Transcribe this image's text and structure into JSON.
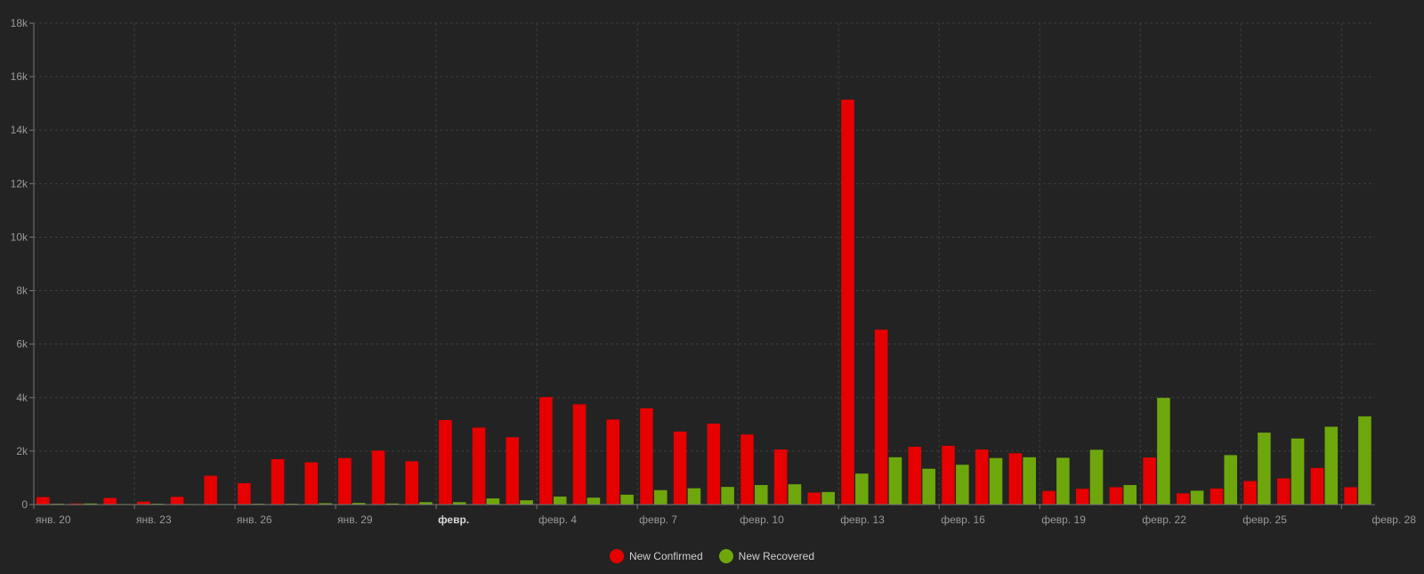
{
  "chart_data": {
    "type": "bar",
    "title": "",
    "xlabel": "",
    "ylabel": "",
    "ylim": [
      0,
      18000
    ],
    "y_ticks": [
      {
        "value": 0,
        "label": "0"
      },
      {
        "value": 2000,
        "label": "2k"
      },
      {
        "value": 4000,
        "label": "4k"
      },
      {
        "value": 6000,
        "label": "6k"
      },
      {
        "value": 8000,
        "label": "8k"
      },
      {
        "value": 10000,
        "label": "10k"
      },
      {
        "value": 12000,
        "label": "12k"
      },
      {
        "value": 14000,
        "label": "14k"
      },
      {
        "value": 16000,
        "label": "16k"
      },
      {
        "value": 18000,
        "label": "18k"
      }
    ],
    "x_ticks": [
      {
        "index": 0,
        "label": "янв. 20",
        "bold": false
      },
      {
        "index": 3,
        "label": "янв. 23",
        "bold": false
      },
      {
        "index": 6,
        "label": "янв. 26",
        "bold": false
      },
      {
        "index": 9,
        "label": "янв. 29",
        "bold": false
      },
      {
        "index": 12,
        "label": "февр.",
        "bold": true
      },
      {
        "index": 15,
        "label": "февр. 4",
        "bold": false
      },
      {
        "index": 18,
        "label": "февр. 7",
        "bold": false
      },
      {
        "index": 21,
        "label": "февр. 10",
        "bold": false
      },
      {
        "index": 24,
        "label": "февр. 13",
        "bold": false
      },
      {
        "index": 27,
        "label": "февр. 16",
        "bold": false
      },
      {
        "index": 30,
        "label": "февр. 19",
        "bold": false
      },
      {
        "index": 33,
        "label": "февр. 22",
        "bold": false
      },
      {
        "index": 36,
        "label": "февр. 25",
        "bold": false
      },
      {
        "index": 39,
        "label": "февр. 28",
        "bold": false
      }
    ],
    "categories": [
      "Jan 20",
      "Jan 21",
      "Jan 22",
      "Jan 23",
      "Jan 24",
      "Jan 25",
      "Jan 26",
      "Jan 27",
      "Jan 28",
      "Jan 29",
      "Jan 30",
      "Jan 31",
      "Feb 1",
      "Feb 2",
      "Feb 3",
      "Feb 4",
      "Feb 5",
      "Feb 6",
      "Feb 7",
      "Feb 8",
      "Feb 9",
      "Feb 10",
      "Feb 11",
      "Feb 12",
      "Feb 13",
      "Feb 14",
      "Feb 15",
      "Feb 16",
      "Feb 17",
      "Feb 18",
      "Feb 19",
      "Feb 20",
      "Feb 21",
      "Feb 22",
      "Feb 23",
      "Feb 24",
      "Feb 25",
      "Feb 26",
      "Feb 27",
      "Feb 28"
    ],
    "series": [
      {
        "name": "New Confirmed",
        "color": "#e60000",
        "values": [
          280,
          40,
          250,
          110,
          290,
          1080,
          800,
          1700,
          1580,
          1740,
          2020,
          1620,
          3160,
          2880,
          2520,
          4020,
          3750,
          3180,
          3600,
          2730,
          3030,
          2620,
          2060,
          450,
          15140,
          6540,
          2160,
          2200,
          2060,
          1920,
          510,
          590,
          650,
          1760,
          420,
          600,
          880,
          980,
          1370,
          650
        ]
      },
      {
        "name": "New Recovered",
        "color": "#6ea70c",
        "values": [
          30,
          40,
          20,
          30,
          20,
          20,
          30,
          30,
          50,
          60,
          40,
          90,
          90,
          230,
          160,
          300,
          260,
          370,
          540,
          610,
          660,
          730,
          760,
          470,
          1160,
          1770,
          1340,
          1490,
          1740,
          1770,
          1750,
          2050,
          730,
          3990,
          520,
          1850,
          2690,
          2470,
          2910,
          3300
        ]
      }
    ],
    "grid": true,
    "legend_position": "bottom-center"
  }
}
